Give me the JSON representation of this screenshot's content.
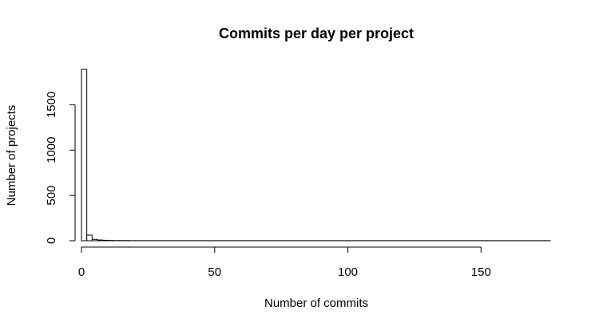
{
  "chart_data": {
    "type": "bar",
    "title": "Commits per day per project",
    "xlabel": "Number of commits",
    "ylabel": "Number of projects",
    "bin_width": 2,
    "bin_start": 0,
    "counts": [
      1890,
      62,
      15,
      8,
      5,
      3,
      2,
      2,
      2,
      1,
      1,
      1,
      1,
      1,
      1,
      1,
      1,
      1,
      1,
      1,
      1,
      1,
      1,
      1,
      1,
      1,
      1,
      1,
      1,
      1,
      1,
      1,
      1,
      1,
      1,
      1,
      1,
      1,
      1,
      1,
      1,
      1,
      1,
      1,
      1,
      1,
      1,
      1,
      1,
      1,
      1,
      1,
      1,
      1,
      1,
      1,
      1,
      1,
      1,
      1,
      1,
      1,
      1,
      1,
      1,
      1,
      1,
      1,
      1,
      1,
      1,
      1,
      1,
      1,
      1,
      1,
      1,
      1,
      1,
      1,
      1,
      1,
      1,
      1,
      1,
      1,
      1,
      1
    ],
    "xlim": [
      0,
      176
    ],
    "ylim": [
      0,
      1890
    ],
    "x_ticks": [
      0,
      50,
      100,
      150
    ],
    "y_ticks": [
      0,
      500,
      1000,
      1500
    ],
    "grid": false,
    "bar_fill": "#ffffff",
    "bar_stroke": "#000000"
  }
}
